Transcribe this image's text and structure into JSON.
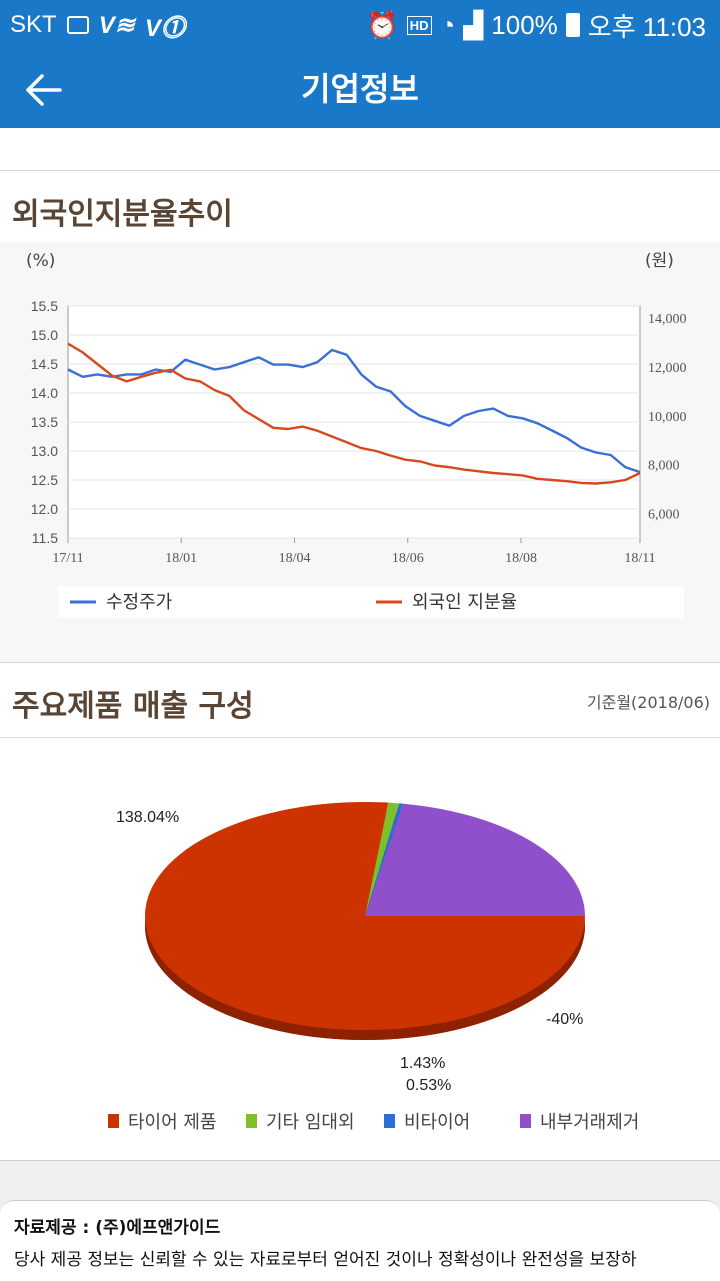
{
  "status_bar": {
    "carrier": "SKT",
    "battery": "100%",
    "time": "오후 11:03",
    "voice_label": "HD"
  },
  "app_bar": {
    "title": "기업정보"
  },
  "foreign": {
    "title": "외국인지분율추이",
    "chart_data": {
      "type": "line",
      "left_unit": "(%)",
      "right_unit": "(원)",
      "left_ticks": [
        "15.5",
        "15.0",
        "14.5",
        "14.0",
        "13.5",
        "13.0",
        "12.5",
        "12.0",
        "11.5"
      ],
      "right_ticks": [
        "14,000",
        "12,000",
        "10,000",
        "8,000",
        "6,000"
      ],
      "x_ticks": [
        "17/11",
        "18/01",
        "18/04",
        "18/06",
        "18/08",
        "18/11"
      ],
      "ylim_left": [
        11.5,
        15.5
      ],
      "ylim_right": [
        5000,
        14500
      ],
      "series": [
        {
          "name": "수정주가",
          "axis": "right",
          "color": "#3a6fd8",
          "values": [
            11900,
            11600,
            11700,
            11600,
            11700,
            11700,
            11900,
            11800,
            12300,
            12100,
            11900,
            12000,
            12200,
            12400,
            12100,
            12100,
            12000,
            12200,
            12700,
            12500,
            11700,
            11200,
            11000,
            10400,
            10000,
            9800,
            9600,
            10000,
            10200,
            10300,
            10000,
            9900,
            9700,
            9400,
            9100,
            8700,
            8500,
            8400,
            7900,
            7700
          ]
        },
        {
          "name": "외국인 지분율",
          "axis": "left",
          "color": "#d9481c",
          "values": [
            14.85,
            14.7,
            14.5,
            14.3,
            14.2,
            14.28,
            14.35,
            14.4,
            14.25,
            14.2,
            14.05,
            13.95,
            13.7,
            13.55,
            13.4,
            13.38,
            13.42,
            13.35,
            13.25,
            13.15,
            13.05,
            13.0,
            12.92,
            12.85,
            12.82,
            12.75,
            12.72,
            12.68,
            12.65,
            12.62,
            12.6,
            12.58,
            12.52,
            12.5,
            12.48,
            12.45,
            12.44,
            12.46,
            12.5,
            12.62
          ]
        }
      ]
    }
  },
  "products": {
    "title": "주요제품 매출 구성",
    "note": "기준월(2018/06)",
    "chart_data": {
      "type": "pie",
      "slices": [
        {
          "name": "타이어 제품",
          "value": 138.04,
          "label": "138.04%",
          "color": "#cc3300"
        },
        {
          "name": "기타 임대외",
          "value": 1.43,
          "label": "1.43%",
          "color": "#7fbf2a"
        },
        {
          "name": "비타이어",
          "value": 0.53,
          "label": "0.53%",
          "color": "#2a6fd6"
        },
        {
          "name": "내부거래제거",
          "value": -40,
          "label": "-40%",
          "color": "#9050cc"
        }
      ]
    }
  },
  "footer": {
    "title": "자료제공 : (주)에프앤가이드",
    "text": "당사 제공 정보는 신뢰할 수 있는 자료로부터 얻어진 것이나 정확성이나 완전성을 보장하"
  }
}
